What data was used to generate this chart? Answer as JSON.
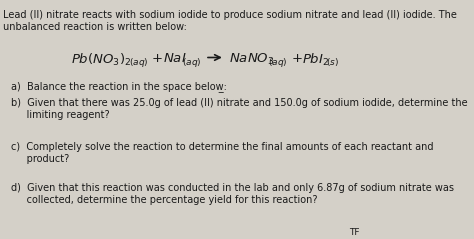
{
  "bg_color": "#d4d0c8",
  "text_color": "#1a1a1a",
  "intro_line1": "Lead (II) nitrate reacts with sodium iodide to produce sodium nitrate and lead (II) iodide. The",
  "intro_line2": "unbalanced reaction is written below:",
  "question_a": "a)  Balance the reaction in the space below̲:",
  "question_b_line1": "b)  Given that there was 25.0g of lead (II) nitrate and 150.0g of sodium iodide, determine the",
  "question_b_line2": "     limiting reagent?",
  "question_c_line1": "c)  Completely solve the reaction to determine the final amounts of each reactant and",
  "question_c_line2": "     product?",
  "question_d_line1": "d)  Given that this reaction was conducted in the lab and only 6.87g of sodium nitrate was",
  "question_d_line2": "     collected, determine the percentage yield for this reaction?",
  "tf_label": "TF",
  "figsize": [
    4.74,
    2.39
  ],
  "dpi": 100
}
